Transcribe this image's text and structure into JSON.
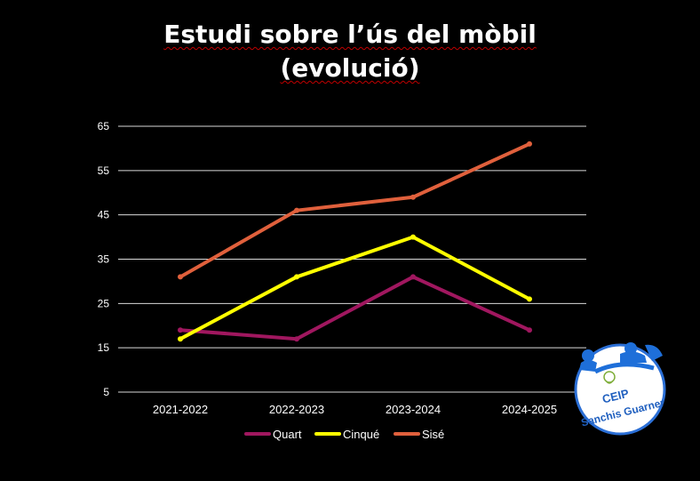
{
  "chart_data": {
    "type": "line",
    "title": [
      "Estudi sobre l’ús del mòbil",
      "(evolució)"
    ],
    "categories": [
      "2021-2022",
      "2022-2023",
      "2023-2024",
      "2024-2025"
    ],
    "yticks": [
      5,
      15,
      25,
      35,
      45,
      55,
      65
    ],
    "ylim": [
      5,
      65
    ],
    "grid": true,
    "legend_position": "bottom",
    "series": [
      {
        "name": "Quart",
        "color": "#a0175f",
        "values": [
          19,
          17,
          31,
          19
        ]
      },
      {
        "name": "Cinqué",
        "color": "#ffff00",
        "values": [
          17,
          31,
          40,
          26
        ]
      },
      {
        "name": "Sisé",
        "color": "#e0603c",
        "values": [
          31,
          46,
          49,
          61
        ]
      }
    ]
  },
  "logo": {
    "line1": "CEIP",
    "line2": "Sanchis Guarner",
    "colors": {
      "blue": "#1e6fd9",
      "border": "#2b6fd6",
      "text": "#1f5fbf"
    }
  }
}
